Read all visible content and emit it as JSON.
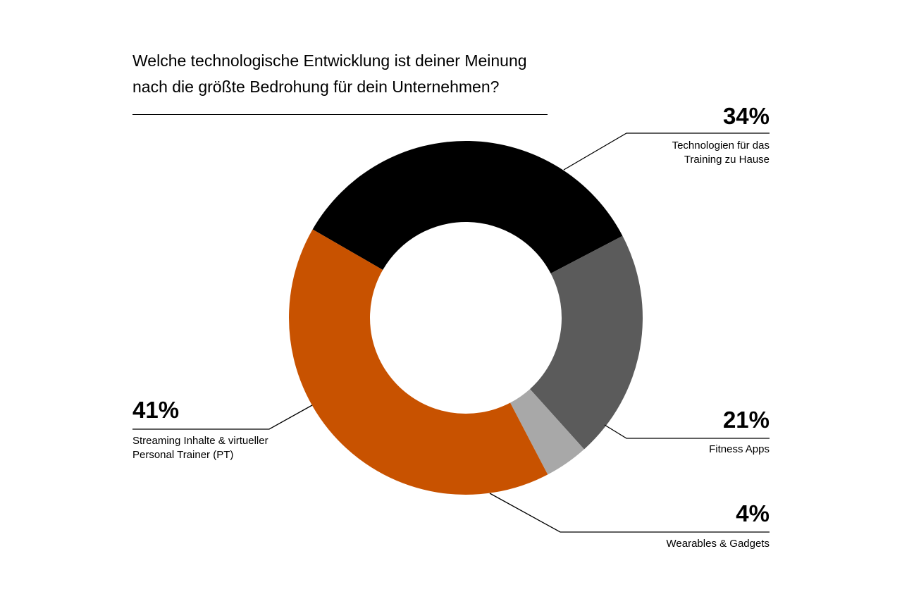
{
  "title": {
    "line1": "Welche technologische Entwicklung ist deiner Meinung",
    "line2": "nach die größte Bedrohung für dein Unternehmen?"
  },
  "chart_data": {
    "type": "pie",
    "title": "Welche technologische Entwicklung ist deiner Meinung nach die größte Bedrohung für dein Unternehmen?",
    "unit": "%",
    "donut": true,
    "slices": [
      {
        "label": "Technologien für das Training zu Hause",
        "value": 34,
        "value_label": "34%",
        "color": "#000000"
      },
      {
        "label": "Fitness Apps",
        "value": 21,
        "value_label": "21%",
        "color": "#5b5b5b"
      },
      {
        "label": "Wearables & Gadgets",
        "value": 4,
        "value_label": "4%",
        "color": "#a8a8a8"
      },
      {
        "label": "Streaming Inhalte & virtueller Personal Trainer (PT)",
        "value": 41,
        "value_label": "41%",
        "color": "#c85200"
      }
    ]
  },
  "labels": {
    "training": {
      "pct": "34%",
      "line1": "Technologien für das",
      "line2": "Training zu Hause"
    },
    "fitness": {
      "pct": "21%",
      "line1": "Fitness Apps"
    },
    "wearables": {
      "pct": "4%",
      "line1": "Wearables & Gadgets"
    },
    "streaming": {
      "pct": "41%",
      "line1": "Streaming Inhalte & virtueller",
      "line2": "Personal Trainer (PT)"
    }
  }
}
